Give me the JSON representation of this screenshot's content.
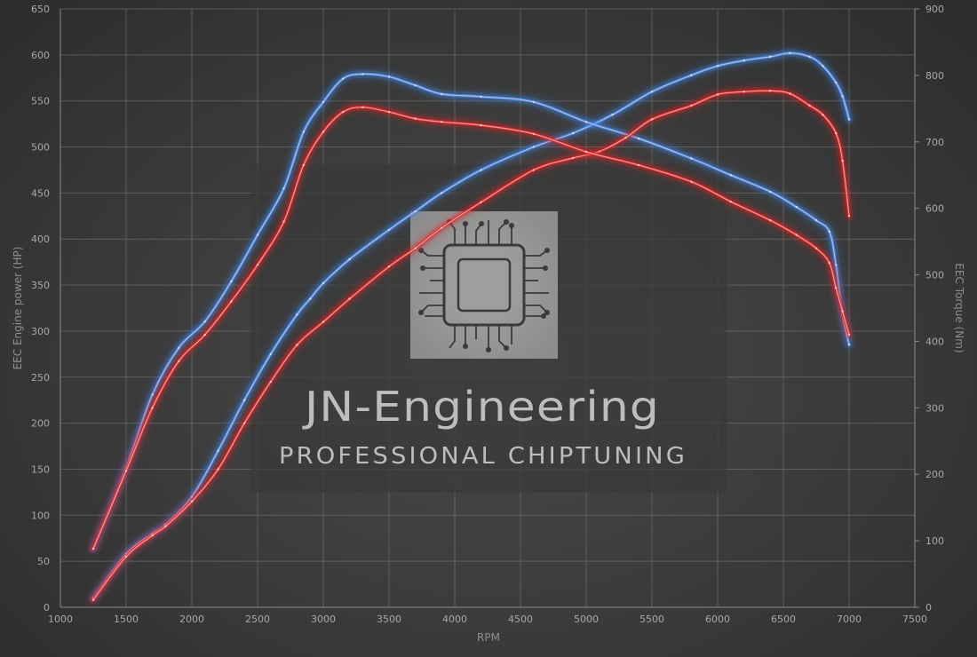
{
  "chart_data": {
    "type": "line",
    "xlabel": "RPM",
    "ylabel_left": "EEC Engine power (HP)",
    "ylabel_right": "EEC Torque (Nm)",
    "xlim": [
      1000,
      7500
    ],
    "ylim_left": [
      0,
      650
    ],
    "ylim_right": [
      0,
      900
    ],
    "x_ticks": [
      1000,
      1500,
      2000,
      2500,
      3000,
      3500,
      4000,
      4500,
      5000,
      5500,
      6000,
      6500,
      7000,
      7500
    ],
    "y_left_ticks": [
      0,
      50,
      100,
      150,
      200,
      250,
      300,
      350,
      400,
      450,
      500,
      550,
      600,
      650
    ],
    "y_right_ticks": [
      0,
      100,
      200,
      300,
      400,
      500,
      600,
      700,
      800,
      900
    ],
    "grid": true,
    "series": [
      {
        "name": "",
        "axis": "left",
        "color": "#3d86e8",
        "x": [
          1250,
          1500,
          1700,
          1800,
          2000,
          2200,
          2400,
          2600,
          2800,
          2900,
          3000,
          3200,
          3500,
          3700,
          3900,
          4200,
          4600,
          4900,
          5200,
          5500,
          5800,
          6000,
          6200,
          6400,
          6550,
          6700,
          6800,
          6900,
          6950,
          7000
        ],
        "values": [
          10,
          58,
          80,
          90,
          120,
          170,
          225,
          275,
          318,
          335,
          352,
          378,
          410,
          430,
          450,
          475,
          500,
          515,
          535,
          560,
          578,
          588,
          594,
          598,
          602,
          598,
          588,
          570,
          555,
          530
        ]
      },
      {
        "name": "",
        "axis": "left",
        "color": "#e02424",
        "x": [
          1250,
          1500,
          1700,
          1800,
          2000,
          2200,
          2400,
          2600,
          2800,
          3000,
          3200,
          3500,
          3700,
          3900,
          4200,
          4600,
          4900,
          5100,
          5300,
          5500,
          5800,
          6000,
          6200,
          6400,
          6550,
          6700,
          6800,
          6900,
          6950,
          7000
        ],
        "values": [
          8,
          55,
          78,
          88,
          115,
          150,
          200,
          245,
          285,
          310,
          335,
          370,
          390,
          412,
          440,
          475,
          488,
          495,
          510,
          530,
          545,
          557,
          560,
          561,
          558,
          545,
          535,
          515,
          485,
          425
        ]
      },
      {
        "name": "",
        "axis": "right",
        "color": "#3d86e8",
        "x": [
          1250,
          1500,
          1700,
          1900,
          2100,
          2300,
          2500,
          2700,
          2850,
          3000,
          3150,
          3300,
          3500,
          3700,
          3900,
          4200,
          4600,
          5000,
          5400,
          5800,
          6100,
          6400,
          6600,
          6750,
          6850,
          6900,
          6950,
          7000
        ],
        "values": [
          88,
          210,
          320,
          390,
          430,
          490,
          560,
          630,
          715,
          760,
          795,
          802,
          798,
          785,
          772,
          768,
          760,
          730,
          705,
          675,
          650,
          625,
          602,
          582,
          565,
          515,
          440,
          395
        ]
      },
      {
        "name": "",
        "axis": "right",
        "color": "#e02424",
        "x": [
          1250,
          1500,
          1700,
          1900,
          2100,
          2300,
          2500,
          2700,
          2850,
          3000,
          3150,
          3300,
          3500,
          3700,
          3900,
          4200,
          4600,
          5000,
          5400,
          5800,
          6100,
          6400,
          6600,
          6750,
          6850,
          6900,
          6950,
          7000
        ],
        "values": [
          88,
          205,
          300,
          370,
          410,
          460,
          515,
          580,
          665,
          715,
          745,
          752,
          745,
          735,
          730,
          725,
          712,
          685,
          665,
          640,
          610,
          582,
          560,
          540,
          518,
          480,
          445,
          410
        ]
      }
    ]
  },
  "watermark": {
    "title": "JN-Engineering",
    "subtitle": "PROFESSIONAL CHIPTUNING",
    "icon": "chip-icon"
  }
}
